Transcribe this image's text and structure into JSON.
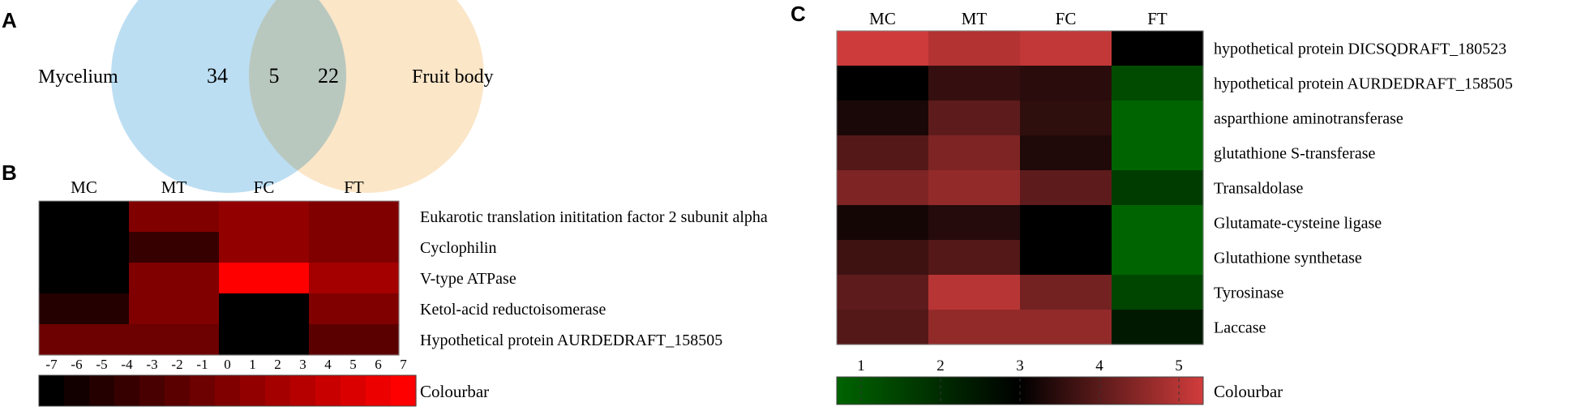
{
  "panels": {
    "a": "A",
    "b": "B",
    "c": "C"
  },
  "chart_data": [
    {
      "type": "venn",
      "sets": [
        {
          "name": "Mycelium",
          "only": 34,
          "color": "#b8dcf2"
        },
        {
          "name": "Fruit body",
          "only": 22,
          "color": "#f9dbb0"
        }
      ],
      "overlap": 5
    },
    {
      "type": "heatmap",
      "columns": [
        "MC",
        "MT",
        "FC",
        "FT"
      ],
      "rows": [
        "Eukarotic translation inititation factor 2 subunit alpha",
        "Cyclophilin",
        "V-type ATPase",
        "Ketol-acid reductoisomerase",
        "Hypothetical protein AURDEDRAFT_158505"
      ],
      "values": [
        [
          -7,
          0,
          1,
          0
        ],
        [
          -7,
          -4,
          1,
          0
        ],
        [
          -7,
          0,
          7,
          2
        ],
        [
          -5,
          0,
          -7,
          0
        ],
        [
          -1,
          -1,
          -7,
          -2
        ]
      ],
      "colorbar": {
        "label": "Colourbar",
        "ticks": [
          "-7",
          "-6",
          "-5",
          "-4",
          "-3",
          "-2",
          "-1",
          "0",
          "1",
          "2",
          "3",
          "4",
          "5",
          "6",
          "7"
        ],
        "range": [
          -7,
          7
        ],
        "colors": [
          "#000000",
          "#ff0000"
        ]
      }
    },
    {
      "type": "heatmap",
      "columns": [
        "MC",
        "MT",
        "FC",
        "FT"
      ],
      "rows": [
        "hypothetical protein DICSQDRAFT_180523",
        "hypothetical protein AURDEDRAFT_158505",
        "asparthione aminotransferase",
        "glutathione S-transferase",
        "Transaldolase",
        "Glutamate-cysteine ligase",
        "Glutathione synthetase",
        "Tyrosinase",
        "Laccase"
      ],
      "values": [
        [
          4.95,
          4.7,
          4.85,
          3.0
        ],
        [
          3.0,
          3.5,
          3.4,
          1.5
        ],
        [
          3.25,
          3.9,
          3.45,
          1.0
        ],
        [
          3.8,
          4.2,
          3.3,
          1.0
        ],
        [
          4.2,
          4.4,
          3.9,
          1.8
        ],
        [
          3.2,
          3.35,
          3.0,
          1.0
        ],
        [
          3.6,
          3.8,
          3.0,
          1.0
        ],
        [
          3.9,
          4.75,
          4.1,
          1.6
        ],
        [
          3.8,
          4.4,
          4.4,
          2.5
        ]
      ],
      "colorbar": {
        "label": "Colourbar",
        "ticks": [
          "1",
          "2",
          "3",
          "4",
          "5"
        ],
        "range": [
          1,
          5
        ],
        "colors": [
          "#006400",
          "#000000",
          "#d23c3c"
        ]
      }
    }
  ]
}
